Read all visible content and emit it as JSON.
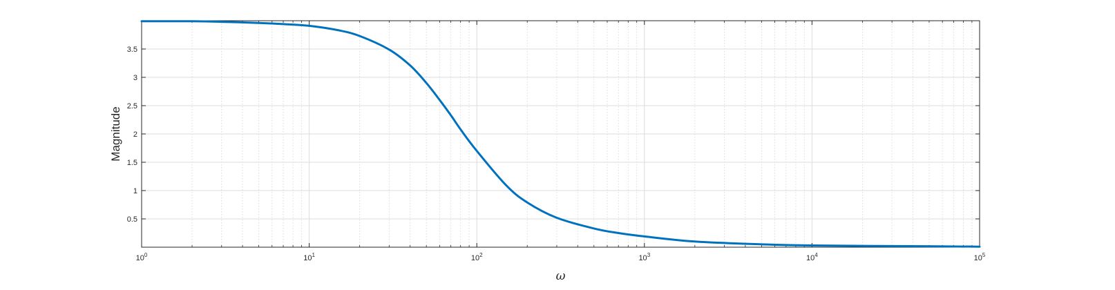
{
  "chart_data": {
    "type": "line",
    "xscale": "log",
    "xlim": [
      1,
      100000
    ],
    "ylim": [
      0,
      4
    ],
    "xlabel": "ω",
    "ylabel": "Magnitude",
    "grid": true,
    "minor_grid_x": true,
    "x_ticks": [
      {
        "value": 1,
        "base": "10",
        "exp": "0"
      },
      {
        "value": 10,
        "base": "10",
        "exp": "1"
      },
      {
        "value": 100,
        "base": "10",
        "exp": "2"
      },
      {
        "value": 1000,
        "base": "10",
        "exp": "3"
      },
      {
        "value": 10000,
        "base": "10",
        "exp": "4"
      },
      {
        "value": 100000,
        "base": "10",
        "exp": "5"
      }
    ],
    "y_ticks": [
      {
        "value": 0.5,
        "label": "0.5"
      },
      {
        "value": 1,
        "label": "1"
      },
      {
        "value": 1.5,
        "label": "1.5"
      },
      {
        "value": 2,
        "label": "2"
      },
      {
        "value": 2.5,
        "label": "2.5"
      },
      {
        "value": 3,
        "label": "3"
      },
      {
        "value": 3.5,
        "label": "3.5"
      }
    ],
    "series": [
      {
        "color": "#0072bd",
        "x": [
          1,
          2,
          3,
          5,
          7,
          10,
          15,
          20,
          30,
          40,
          50,
          60,
          70,
          80,
          100,
          150,
          200,
          300,
          500,
          700,
          1000,
          2000,
          5000,
          10000,
          30000,
          100000
        ],
        "y": [
          3.99,
          3.99,
          3.98,
          3.96,
          3.94,
          3.91,
          3.83,
          3.73,
          3.49,
          3.21,
          2.9,
          2.6,
          2.33,
          2.08,
          1.7,
          1.09,
          0.79,
          0.52,
          0.33,
          0.25,
          0.19,
          0.1,
          0.05,
          0.03,
          0.02,
          0.01
        ]
      }
    ]
  }
}
